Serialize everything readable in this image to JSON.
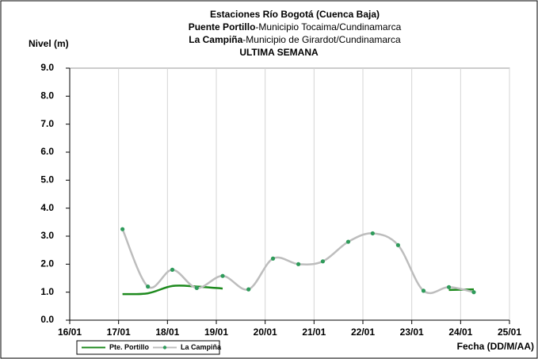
{
  "chart_data": {
    "type": "line",
    "title": "Estaciones Río Bogotá (Cuenca Baja)",
    "subtitle_lines": [
      {
        "station": "Puente Portillo",
        "place": "-Municipio Tocaima/Cundinamarca"
      },
      {
        "station": "La Campiña",
        "place": "-Municipio de Girardot/Cundinamarca"
      }
    ],
    "period": "ULTIMA SEMANA",
    "y_label": "Nivel (m)",
    "x_label": "Fecha (DD/M/AA)",
    "x": [
      17.08,
      17.6,
      18.1,
      18.6,
      19.13,
      19.66,
      20.16,
      20.68,
      21.18,
      21.7,
      22.2,
      22.72,
      23.24,
      23.76,
      24.27
    ],
    "series": [
      {
        "name": "Pte. Portillo",
        "color": "#1e8a1e",
        "markers": false,
        "values": [
          0.93,
          0.96,
          1.22,
          1.2,
          1.13,
          null,
          null,
          null,
          null,
          null,
          null,
          null,
          null,
          1.08,
          1.1
        ]
      },
      {
        "name": "La Campiña",
        "color": "#bdbdbd",
        "marker_color": "#2e9b5a",
        "markers": true,
        "values": [
          3.25,
          1.2,
          1.8,
          1.15,
          1.58,
          1.1,
          2.2,
          2.0,
          2.1,
          2.8,
          3.1,
          2.68,
          1.05,
          1.18,
          1.0
        ]
      }
    ],
    "xlim": [
      16,
      25
    ],
    "xticks": [
      {
        "value": 16,
        "label": "16/01"
      },
      {
        "value": 17,
        "label": "17/01"
      },
      {
        "value": 18,
        "label": "18/01"
      },
      {
        "value": 19,
        "label": "19/01"
      },
      {
        "value": 20,
        "label": "20/01"
      },
      {
        "value": 21,
        "label": "21/01"
      },
      {
        "value": 22,
        "label": "22/01"
      },
      {
        "value": 23,
        "label": "23/01"
      },
      {
        "value": 24,
        "label": "24/01"
      },
      {
        "value": 25,
        "label": "25/01"
      }
    ],
    "ylim": [
      0,
      9
    ],
    "yticks": [
      {
        "value": 0,
        "label": "0.0"
      },
      {
        "value": 1,
        "label": "1.0"
      },
      {
        "value": 2,
        "label": "2.0"
      },
      {
        "value": 3,
        "label": "3.0"
      },
      {
        "value": 4,
        "label": "4.0"
      },
      {
        "value": 5,
        "label": "5.0"
      },
      {
        "value": 6,
        "label": "6.0"
      },
      {
        "value": 7,
        "label": "7.0"
      },
      {
        "value": 8,
        "label": "8.0"
      },
      {
        "value": 9,
        "label": "9.0"
      }
    ],
    "grid": true,
    "smooth": true,
    "legend": "bottom-left"
  }
}
